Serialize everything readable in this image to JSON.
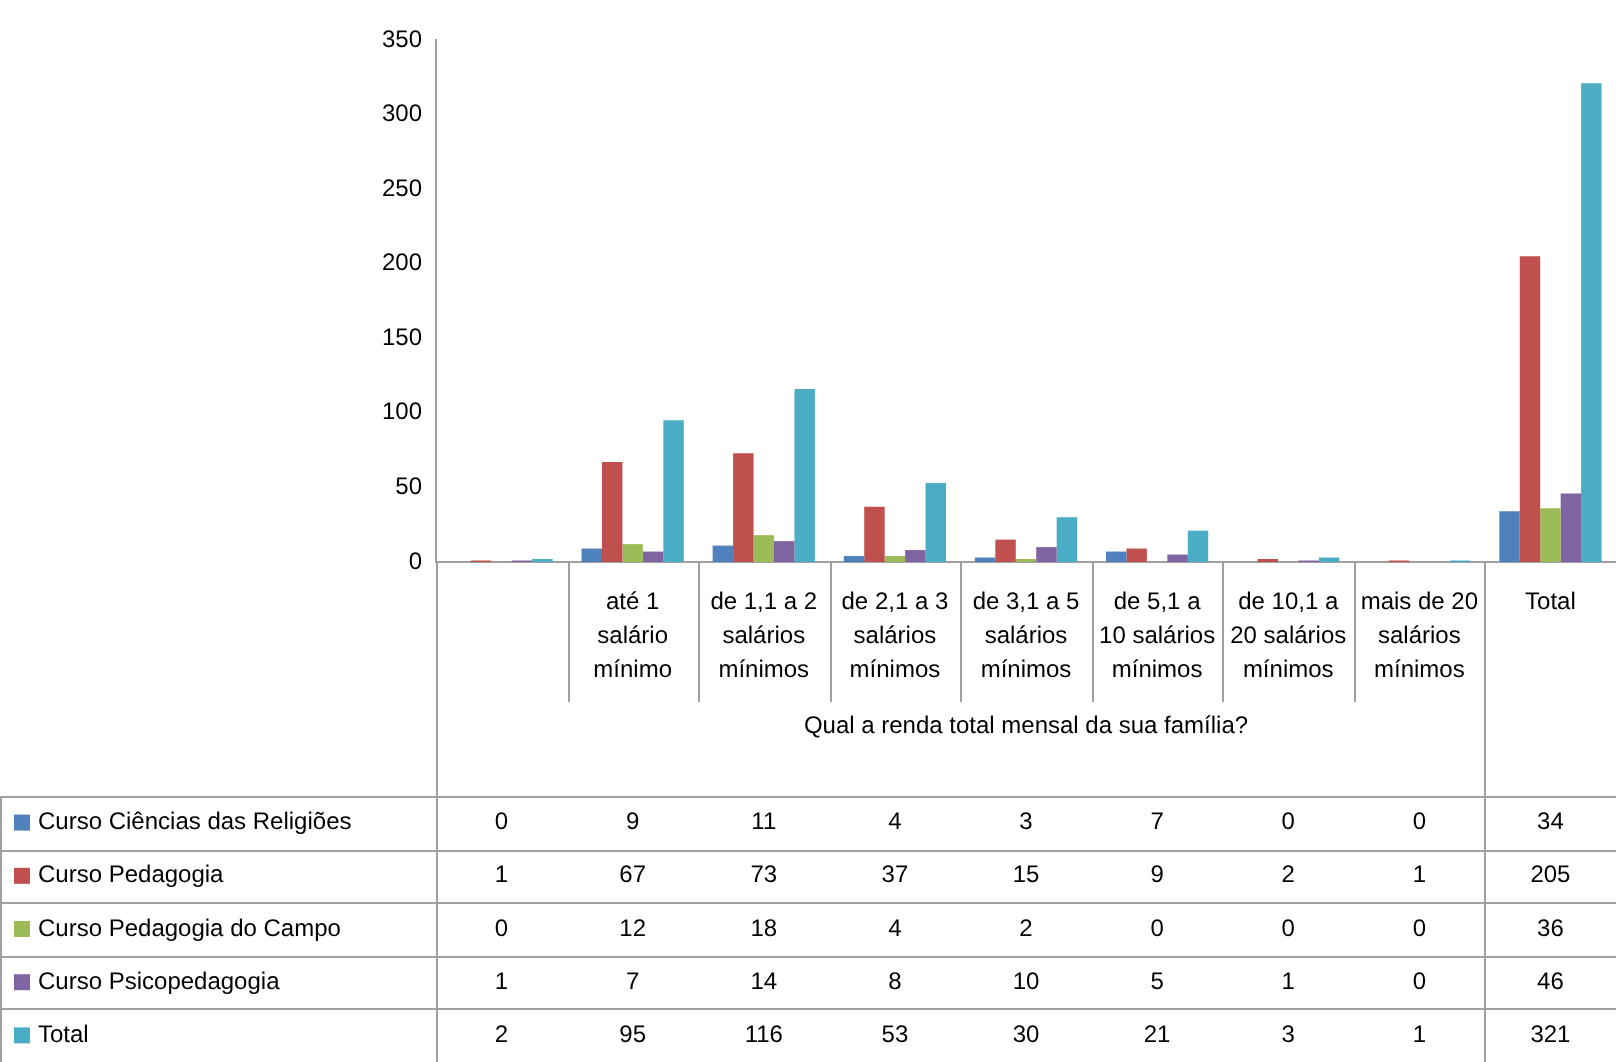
{
  "chart_data": {
    "type": "bar",
    "xlabel": "Qual a renda total mensal da sua família?",
    "categories": [
      null,
      "até 1 salário mínimo",
      "de 1,1 a 2 salários mínimos",
      "de 2,1 a 3 salários mínimos",
      "de 3,1 a 5 salários mínimos",
      "de 5,1 a 10 salários mínimos",
      "de 10,1 a 20 salários mínimos",
      "mais de 20 salários mínimos",
      "Total"
    ],
    "series": [
      {
        "name": "Curso Ciências das Religiões",
        "color": "#4f81bd",
        "values": [
          0,
          9,
          11,
          4,
          3,
          7,
          0,
          0,
          34
        ]
      },
      {
        "name": "Curso Pedagogia",
        "color": "#c0504d",
        "values": [
          1,
          67,
          73,
          37,
          15,
          9,
          2,
          1,
          205
        ]
      },
      {
        "name": "Curso Pedagogia do Campo",
        "color": "#9bbb59",
        "values": [
          0,
          12,
          18,
          4,
          2,
          0,
          0,
          0,
          36
        ]
      },
      {
        "name": "Curso Psicopedagogia",
        "color": "#8064a2",
        "values": [
          1,
          7,
          14,
          8,
          10,
          5,
          1,
          0,
          46
        ]
      },
      {
        "name": "Total",
        "color": "#4bacc6",
        "values": [
          2,
          95,
          116,
          53,
          30,
          21,
          3,
          1,
          321
        ]
      }
    ],
    "ylim": [
      0,
      350
    ],
    "yticks": [
      0,
      50,
      100,
      150,
      200,
      250,
      300,
      350
    ],
    "grid": false,
    "legend": "bottom left",
    "data_labels": true
  }
}
